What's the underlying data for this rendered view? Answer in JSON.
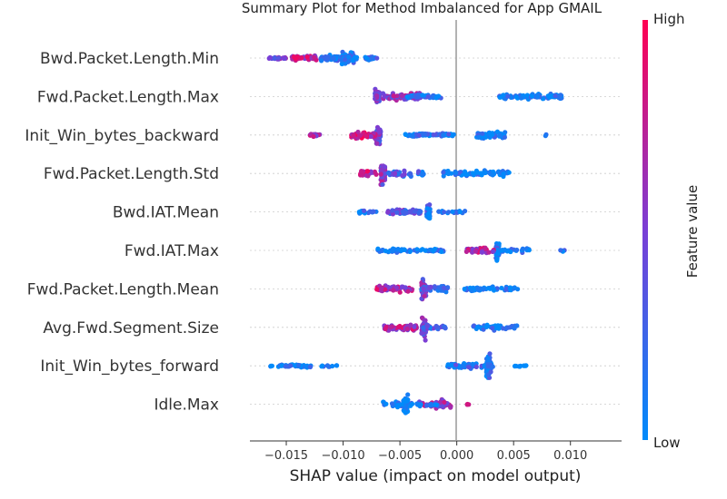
{
  "chart_data": {
    "type": "scatter",
    "title": "Summary Plot for Method Imbalanced for App GMAIL",
    "xlabel": "SHAP value (impact on model output)",
    "xlim": [
      -0.0182,
      0.0145
    ],
    "xticks": [
      {
        "v": -0.015,
        "label": "−0.015"
      },
      {
        "v": -0.01,
        "label": "−0.010"
      },
      {
        "v": -0.005,
        "label": "−0.005"
      },
      {
        "v": 0.0,
        "label": "0.000"
      },
      {
        "v": 0.005,
        "label": "0.005"
      },
      {
        "v": 0.01,
        "label": "0.010"
      }
    ],
    "colorbar": {
      "label": "Feature value",
      "high": "High",
      "low": "Low",
      "low_color": "#008bfb",
      "mid_color": "#7a3fd6",
      "high_color": "#ff0052"
    },
    "features": [
      {
        "name": "Bwd.Packet.Length.Min",
        "clusters": [
          {
            "x": -0.0096,
            "w": 0.0011,
            "n": 70,
            "h": 18,
            "c": 0.08
          },
          {
            "x": -0.0104,
            "w": 0.0032,
            "n": 70,
            "h": 9,
            "c": 0.12
          },
          {
            "x": -0.0134,
            "w": 0.0022,
            "n": 45,
            "h": 7,
            "c": 0.72
          },
          {
            "x": -0.0158,
            "w": 0.0016,
            "n": 25,
            "h": 5,
            "c": 0.55
          },
          {
            "x": -0.0075,
            "w": 0.0011,
            "n": 18,
            "h": 5,
            "c": 0.15
          }
        ]
      },
      {
        "name": "Fwd.Packet.Length.Max",
        "clusters": [
          {
            "x": -0.007,
            "w": 0.0004,
            "n": 45,
            "h": 20,
            "c": 0.5
          },
          {
            "x": -0.0048,
            "w": 0.0034,
            "n": 70,
            "h": 10,
            "c": 0.55
          },
          {
            "x": -0.0028,
            "w": 0.0032,
            "n": 40,
            "h": 6,
            "c": 0.15
          },
          {
            "x": 0.0065,
            "w": 0.0055,
            "n": 90,
            "h": 7,
            "c": 0.05
          }
        ]
      },
      {
        "name": "Init_Win_bytes_backward",
        "clusters": [
          {
            "x": -0.0069,
            "w": 0.0004,
            "n": 50,
            "h": 26,
            "c": 0.45
          },
          {
            "x": -0.0082,
            "w": 0.0022,
            "n": 45,
            "h": 10,
            "c": 0.8
          },
          {
            "x": -0.0125,
            "w": 0.001,
            "n": 12,
            "h": 5,
            "c": 0.6
          },
          {
            "x": -0.0025,
            "w": 0.0045,
            "n": 70,
            "h": 5,
            "c": 0.15
          },
          {
            "x": 0.003,
            "w": 0.0025,
            "n": 45,
            "h": 10,
            "c": 0.05
          },
          {
            "x": 0.0078,
            "w": 0.0002,
            "n": 2,
            "h": 2,
            "c": 0.05
          }
        ]
      },
      {
        "name": "Fwd.Packet.Length.Std",
        "clusters": [
          {
            "x": -0.0065,
            "w": 0.0004,
            "n": 50,
            "h": 30,
            "c": 0.55
          },
          {
            "x": -0.0078,
            "w": 0.0015,
            "n": 30,
            "h": 8,
            "c": 0.7
          },
          {
            "x": -0.005,
            "w": 0.002,
            "n": 30,
            "h": 8,
            "c": 0.3
          },
          {
            "x": -0.0032,
            "w": 0.0006,
            "n": 12,
            "h": 6,
            "c": 0.2
          },
          {
            "x": 0.0018,
            "w": 0.006,
            "n": 80,
            "h": 8,
            "c": 0.05
          }
        ]
      },
      {
        "name": "Bwd.IAT.Mean",
        "clusters": [
          {
            "x": -0.0025,
            "w": 0.0003,
            "n": 40,
            "h": 24,
            "c": 0.15
          },
          {
            "x": -0.0047,
            "w": 0.003,
            "n": 60,
            "h": 8,
            "c": 0.4
          },
          {
            "x": -0.0078,
            "w": 0.0016,
            "n": 20,
            "h": 5,
            "c": 0.1
          },
          {
            "x": -0.0004,
            "w": 0.0025,
            "n": 20,
            "h": 4,
            "c": 0.1
          }
        ]
      },
      {
        "name": "Fwd.IAT.Max",
        "clusters": [
          {
            "x": 0.0036,
            "w": 0.0003,
            "n": 50,
            "h": 30,
            "c": 0.12
          },
          {
            "x": 0.002,
            "w": 0.0025,
            "n": 40,
            "h": 8,
            "c": 0.7
          },
          {
            "x": -0.004,
            "w": 0.006,
            "n": 70,
            "h": 5,
            "c": 0.08
          },
          {
            "x": 0.0052,
            "w": 0.0025,
            "n": 25,
            "h": 6,
            "c": 0.08
          },
          {
            "x": 0.0093,
            "w": 0.0004,
            "n": 4,
            "h": 3,
            "c": 0.08
          }
        ]
      },
      {
        "name": "Fwd.Packet.Length.Mean",
        "clusters": [
          {
            "x": -0.0029,
            "w": 0.0004,
            "n": 50,
            "h": 30,
            "c": 0.5
          },
          {
            "x": -0.0055,
            "w": 0.0032,
            "n": 60,
            "h": 10,
            "c": 0.7
          },
          {
            "x": -0.002,
            "w": 0.0025,
            "n": 40,
            "h": 8,
            "c": 0.3
          },
          {
            "x": 0.003,
            "w": 0.0048,
            "n": 60,
            "h": 6,
            "c": 0.05
          }
        ]
      },
      {
        "name": "Avg.Fwd.Segment.Size",
        "clusters": [
          {
            "x": -0.0029,
            "w": 0.0004,
            "n": 50,
            "h": 30,
            "c": 0.5
          },
          {
            "x": -0.005,
            "w": 0.003,
            "n": 50,
            "h": 10,
            "c": 0.7
          },
          {
            "x": -0.002,
            "w": 0.002,
            "n": 30,
            "h": 6,
            "c": 0.3
          },
          {
            "x": 0.0033,
            "w": 0.004,
            "n": 40,
            "h": 8,
            "c": 0.05
          }
        ]
      },
      {
        "name": "Init_Win_bytes_forward",
        "clusters": [
          {
            "x": 0.0028,
            "w": 0.0004,
            "n": 45,
            "h": 34,
            "c": 0.12
          },
          {
            "x": 0.0012,
            "w": 0.004,
            "n": 60,
            "h": 8,
            "c": 0.2
          },
          {
            "x": -0.0135,
            "w": 0.006,
            "n": 50,
            "h": 5,
            "c": 0.05
          },
          {
            "x": 0.0055,
            "w": 0.0012,
            "n": 10,
            "h": 4,
            "c": 0.05
          }
        ]
      },
      {
        "name": "Idle.Max",
        "clusters": [
          {
            "x": -0.0045,
            "w": 0.0004,
            "n": 50,
            "h": 30,
            "c": 0.05
          },
          {
            "x": -0.0018,
            "w": 0.003,
            "n": 50,
            "h": 12,
            "c": 0.6
          },
          {
            "x": -0.004,
            "w": 0.005,
            "n": 40,
            "h": 8,
            "c": 0.1
          },
          {
            "x": 0.001,
            "w": 0.0002,
            "n": 3,
            "h": 2,
            "c": 0.85
          }
        ]
      }
    ]
  }
}
